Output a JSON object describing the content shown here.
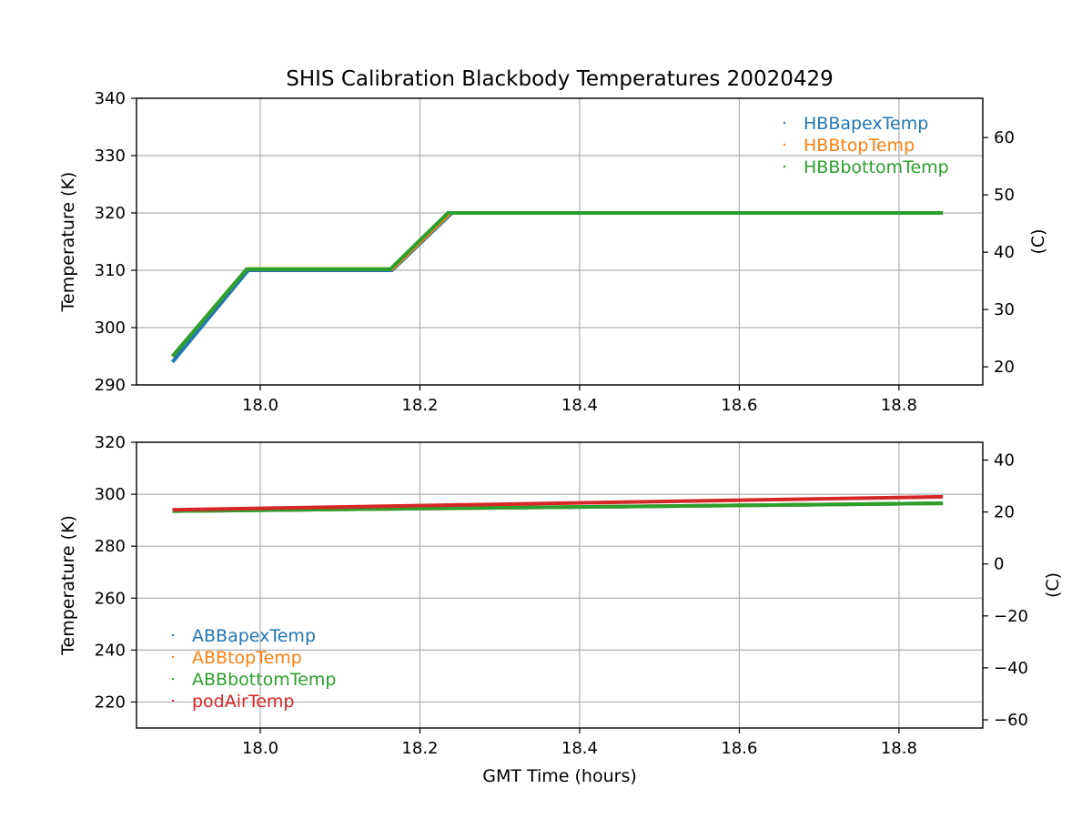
{
  "chart_data": {
    "title": "SHIS Calibration Blackbody Temperatures 20020429",
    "xlabel": "GMT Time (hours)",
    "panels": [
      {
        "type": "scatter",
        "ylabel": "Temperature (K)",
        "ylabel_right": "(C)",
        "xlim": [
          17.845,
          18.905
        ],
        "ylim": [
          290,
          340
        ],
        "ylim_right_c": [
          16.85,
          66.85
        ],
        "xticks": [
          18.0,
          18.2,
          18.4,
          18.6,
          18.8
        ],
        "xtick_labels": [
          "18.0",
          "18.2",
          "18.4",
          "18.6",
          "18.8"
        ],
        "yticks": [
          290,
          300,
          310,
          320,
          330,
          340
        ],
        "ytick_labels": [
          "290",
          "300",
          "310",
          "320",
          "330",
          "340"
        ],
        "yticks_right": [
          20,
          30,
          40,
          50,
          60
        ],
        "ytick_right_labels": [
          "20",
          "30",
          "40",
          "50",
          "60"
        ],
        "grid": true,
        "legend_position": "top-right",
        "series": [
          {
            "name": "HBBapexTemp",
            "color": "#1f77b4",
            "points": [
              [
                17.89,
                294.0
              ],
              [
                17.985,
                310.0
              ],
              [
                18.165,
                310.0
              ],
              [
                18.24,
                320.0
              ],
              [
                18.855,
                320.0
              ]
            ]
          },
          {
            "name": "HBBtopTemp",
            "color": "#ff7f0e",
            "points": [
              [
                17.89,
                295.0
              ],
              [
                17.983,
                310.2
              ],
              [
                18.165,
                310.2
              ],
              [
                18.238,
                320.0
              ],
              [
                18.855,
                320.0
              ]
            ]
          },
          {
            "name": "HBBbottomTemp",
            "color": "#2ca02c",
            "points": [
              [
                17.89,
                295.0
              ],
              [
                17.983,
                310.2
              ],
              [
                18.163,
                310.2
              ],
              [
                18.235,
                320.0
              ],
              [
                18.855,
                320.0
              ]
            ]
          }
        ]
      },
      {
        "type": "scatter",
        "ylabel": "Temperature (K)",
        "ylabel_right": "(C)",
        "xlim": [
          17.845,
          18.905
        ],
        "ylim": [
          210,
          320
        ],
        "ylim_right_c": [
          -63.15,
          46.85
        ],
        "xticks": [
          18.0,
          18.2,
          18.4,
          18.6,
          18.8
        ],
        "xtick_labels": [
          "18.0",
          "18.2",
          "18.4",
          "18.6",
          "18.8"
        ],
        "yticks": [
          220,
          240,
          260,
          280,
          300,
          320
        ],
        "ytick_labels": [
          "220",
          "240",
          "260",
          "280",
          "300",
          "320"
        ],
        "yticks_right": [
          -60,
          -40,
          -20,
          0,
          20,
          40
        ],
        "ytick_right_labels": [
          "−60",
          "−40",
          "−20",
          "0",
          "20",
          "40"
        ],
        "grid": true,
        "legend_position": "bottom-left",
        "series": [
          {
            "name": "ABBapexTemp",
            "color": "#1f77b4",
            "points": [
              [
                17.89,
                293.5
              ],
              [
                18.855,
                296.5
              ]
            ]
          },
          {
            "name": "ABBtopTemp",
            "color": "#ff7f0e",
            "points": [
              [
                17.89,
                293.5
              ],
              [
                18.855,
                296.5
              ]
            ]
          },
          {
            "name": "ABBbottomTemp",
            "color": "#2ca02c",
            "points": [
              [
                17.89,
                293.5
              ],
              [
                18.855,
                296.5
              ]
            ]
          },
          {
            "name": "podAirTemp",
            "color": "#d62728",
            "points": [
              [
                17.89,
                294.0
              ],
              [
                18.855,
                299.0
              ]
            ]
          }
        ]
      }
    ]
  }
}
